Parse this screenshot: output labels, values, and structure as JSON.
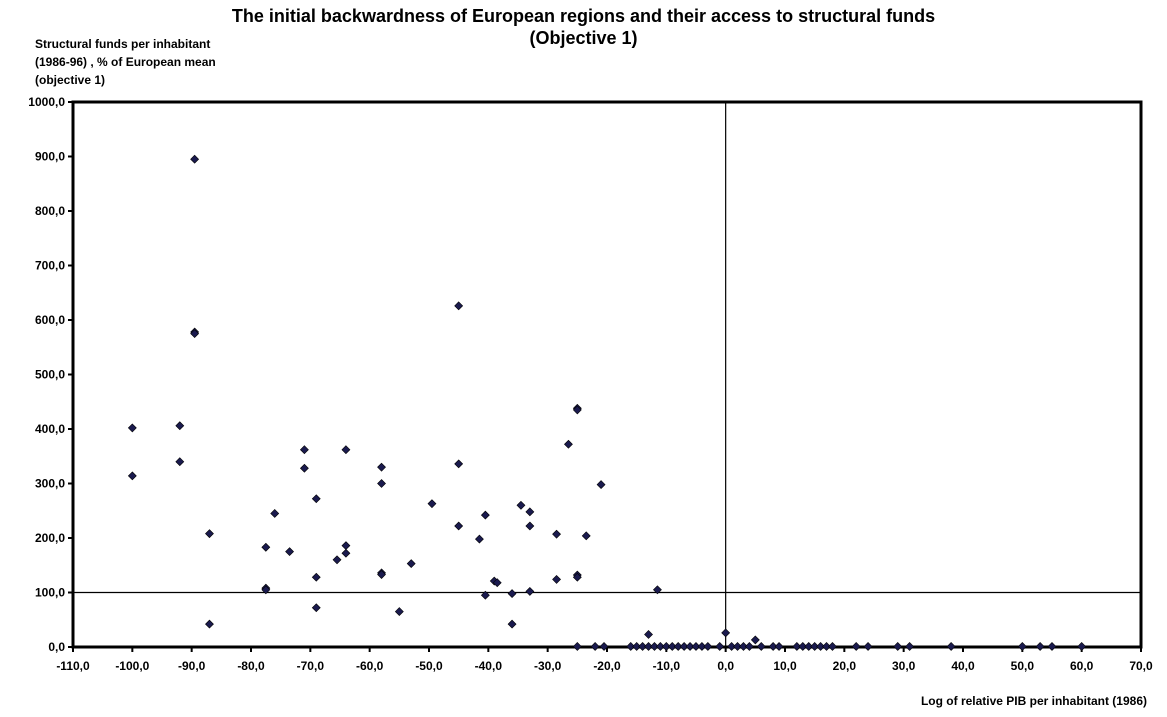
{
  "chart_data": {
    "type": "scatter",
    "title": "The initial backwardness of European regions and their access to structural funds",
    "subtitle": "(Objective 1)",
    "ylabel_lines": [
      "Structural funds per inhabitant",
      "(1986-96) , % of European mean",
      "(objective 1)"
    ],
    "xlabel": "Log of relative PIB per inhabitant (1986)",
    "xlim": [
      -110,
      70
    ],
    "ylim": [
      0,
      1000
    ],
    "x_ticks": [
      "-110,0",
      "-100,0",
      "-90,0",
      "-80,0",
      "-70,0",
      "-60,0",
      "-50,0",
      "-40,0",
      "-30,0",
      "-20,0",
      "-10,0",
      "0,0",
      "10,0",
      "20,0",
      "30,0",
      "40,0",
      "50,0",
      "60,0",
      "70,0"
    ],
    "y_ticks": [
      "0,0",
      "100,0",
      "200,0",
      "300,0",
      "400,0",
      "500,0",
      "600,0",
      "700,0",
      "800,0",
      "900,0",
      "1000,0"
    ],
    "reference_lines": {
      "x": 0,
      "y": 100
    },
    "grid": false,
    "marker_color": "#1a1a4e",
    "points": [
      [
        -100,
        402
      ],
      [
        -100,
        314
      ],
      [
        -92,
        406
      ],
      [
        -92,
        340
      ],
      [
        -89.5,
        895
      ],
      [
        -89.5,
        578
      ],
      [
        -89.5,
        575
      ],
      [
        -87,
        208
      ],
      [
        -87,
        42
      ],
      [
        -77.5,
        183
      ],
      [
        -77.5,
        108
      ],
      [
        -77.5,
        105
      ],
      [
        -76,
        245
      ],
      [
        -73.5,
        175
      ],
      [
        -71,
        362
      ],
      [
        -71,
        328
      ],
      [
        -69,
        272
      ],
      [
        -69,
        128
      ],
      [
        -69,
        72
      ],
      [
        -65.5,
        160
      ],
      [
        -64,
        362
      ],
      [
        -64,
        186
      ],
      [
        -64,
        172
      ],
      [
        -58,
        330
      ],
      [
        -58,
        300
      ],
      [
        -58,
        136
      ],
      [
        -58,
        133
      ],
      [
        -55,
        65
      ],
      [
        -53,
        153
      ],
      [
        -49.5,
        263
      ],
      [
        -45,
        626
      ],
      [
        -45,
        336
      ],
      [
        -45,
        222
      ],
      [
        -41.5,
        198
      ],
      [
        -40.5,
        242
      ],
      [
        -40.5,
        95
      ],
      [
        -39,
        121
      ],
      [
        -38.5,
        118
      ],
      [
        -36,
        98
      ],
      [
        -36,
        42
      ],
      [
        -34.5,
        260
      ],
      [
        -33,
        248
      ],
      [
        -33,
        222
      ],
      [
        -33,
        102
      ],
      [
        -28.5,
        207
      ],
      [
        -28.5,
        124
      ],
      [
        -26.5,
        372
      ],
      [
        -25,
        438
      ],
      [
        -25,
        435
      ],
      [
        -25,
        132
      ],
      [
        -25,
        128
      ],
      [
        -23.5,
        204
      ],
      [
        -21,
        298
      ],
      [
        -13,
        23
      ],
      [
        -11.5,
        105
      ],
      [
        0,
        26
      ],
      [
        5,
        13
      ],
      [
        -25,
        1
      ],
      [
        -22,
        1
      ],
      [
        -20.5,
        1
      ],
      [
        -16,
        1
      ],
      [
        -15,
        1
      ],
      [
        -14,
        1
      ],
      [
        -13,
        1
      ],
      [
        -12,
        1
      ],
      [
        -11,
        1
      ],
      [
        -10,
        1
      ],
      [
        -9,
        1
      ],
      [
        -8,
        1
      ],
      [
        -7,
        1
      ],
      [
        -6,
        1
      ],
      [
        -5,
        1
      ],
      [
        -4,
        1
      ],
      [
        -3,
        1
      ],
      [
        -1,
        1
      ],
      [
        1,
        1
      ],
      [
        2,
        1
      ],
      [
        3,
        1
      ],
      [
        4,
        1
      ],
      [
        6,
        1
      ],
      [
        8,
        1
      ],
      [
        9,
        1
      ],
      [
        12,
        1
      ],
      [
        13,
        1
      ],
      [
        14,
        1
      ],
      [
        15,
        1
      ],
      [
        16,
        1
      ],
      [
        17,
        1
      ],
      [
        18,
        1
      ],
      [
        22,
        1
      ],
      [
        24,
        1
      ],
      [
        29,
        1
      ],
      [
        31,
        1
      ],
      [
        38,
        1
      ],
      [
        50,
        1
      ],
      [
        53,
        1
      ],
      [
        55,
        1
      ],
      [
        60,
        1
      ]
    ]
  }
}
